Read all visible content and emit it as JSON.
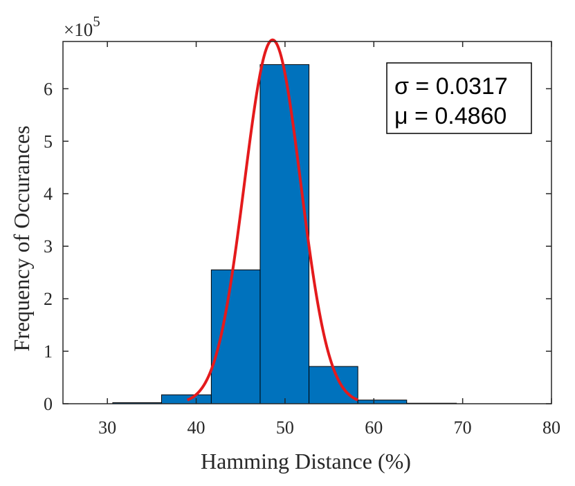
{
  "chart_data": {
    "type": "bar",
    "title": "",
    "xlabel": "Hamming Distance (%)",
    "ylabel": "Frequency of Occurances",
    "y_multiplier": {
      "base": "×10",
      "exponent": "5"
    },
    "xlim": [
      25,
      80
    ],
    "ylim": [
      0,
      6.9
    ],
    "xticks": [
      "30",
      "40",
      "50",
      "60",
      "70",
      "80"
    ],
    "yticks": [
      "0",
      "1",
      "2",
      "3",
      "4",
      "5",
      "6"
    ],
    "grid": false,
    "bins": [
      {
        "x0": 30.6,
        "x1": 36.1,
        "value": 0.02
      },
      {
        "x0": 36.1,
        "x1": 41.7,
        "value": 0.17
      },
      {
        "x0": 41.7,
        "x1": 47.2,
        "value": 2.55
      },
      {
        "x0": 47.2,
        "x1": 52.7,
        "value": 6.46
      },
      {
        "x0": 52.7,
        "x1": 58.2,
        "value": 0.71
      },
      {
        "x0": 58.2,
        "x1": 63.7,
        "value": 0.07
      },
      {
        "x0": 63.7,
        "x1": 69.3,
        "value": 0.01
      }
    ],
    "fit_curve": {
      "type": "normal",
      "mean": 48.6,
      "std": 3.17,
      "peak": 6.93,
      "x_range": [
        39.0,
        58.2
      ]
    },
    "legend": {
      "position": "top-right",
      "lines": [
        "σ = 0.0317",
        "μ = 0.4860"
      ]
    },
    "colors": {
      "bar_fill": "#0072BD",
      "bar_edge": "#000000",
      "curve": "#E41A1C",
      "axis": "#262626"
    }
  }
}
